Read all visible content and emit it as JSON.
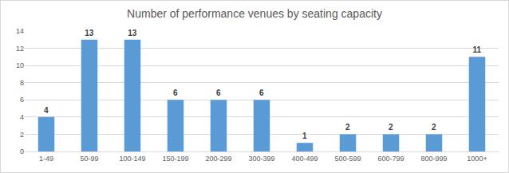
{
  "chart_data": {
    "type": "bar",
    "title": "Number of performance venues by seating capacity",
    "categories": [
      "1-49",
      "50-99",
      "100-149",
      "150-199",
      "200-299",
      "300-399",
      "400-499",
      "500-599",
      "600-799",
      "800-999",
      "1000+"
    ],
    "values": [
      4,
      13,
      13,
      6,
      6,
      6,
      1,
      2,
      2,
      2,
      11
    ],
    "color": "#5b9bd5",
    "ylim": [
      0,
      14
    ],
    "yticks": [
      0,
      2,
      4,
      6,
      8,
      10,
      12,
      14
    ],
    "grid": true,
    "data_labels": true
  }
}
